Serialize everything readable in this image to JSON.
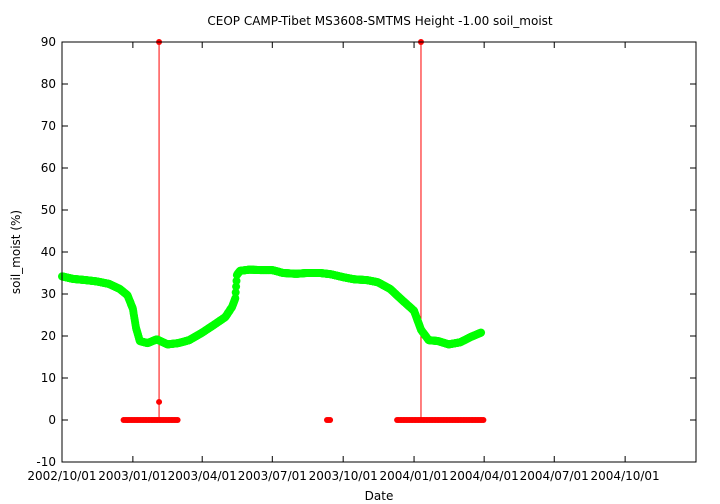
{
  "chart_data": {
    "type": "scatter",
    "title": "CEOP CAMP-Tibet MS3608-SMTMS Height -1.00 soil_moist",
    "xlabel": "Date",
    "ylabel": "soil_moist (%)",
    "xlim": [
      "2002-10-01",
      "2005-01-01"
    ],
    "ylim": [
      -10,
      90
    ],
    "x_ticks": [
      "2002/10/01",
      "2003/01/01",
      "2003/04/01",
      "2003/07/01",
      "2003/10/01",
      "2004/01/01",
      "2004/04/01",
      "2004/07/01",
      "2004/10/01"
    ],
    "y_ticks": [
      -10,
      0,
      10,
      20,
      30,
      40,
      50,
      60,
      70,
      80,
      90
    ],
    "grid": false,
    "legend": "none",
    "colors": {
      "soil_moist": "#00ff00",
      "flag": "#ff0000",
      "frame": "#000000"
    },
    "series": [
      {
        "color": "#00ff00",
        "points": [
          [
            "2002-10-01",
            34.2
          ],
          [
            "2002-10-15",
            33.6
          ],
          [
            "2002-11-01",
            33.3
          ],
          [
            "2002-11-15",
            33.0
          ],
          [
            "2002-12-01",
            32.4
          ],
          [
            "2002-12-15",
            31.2
          ],
          [
            "2002-12-25",
            29.7
          ],
          [
            "2003-01-01",
            26.5
          ],
          [
            "2003-01-05",
            22.0
          ],
          [
            "2003-01-10",
            18.8
          ],
          [
            "2003-01-20",
            18.3
          ],
          [
            "2003-02-01",
            19.2
          ],
          [
            "2003-02-15",
            18.0
          ],
          [
            "2003-03-01",
            18.3
          ],
          [
            "2003-03-15",
            19.0
          ],
          [
            "2003-04-01",
            20.8
          ],
          [
            "2003-04-15",
            22.5
          ],
          [
            "2003-05-01",
            24.5
          ],
          [
            "2003-05-10",
            27.0
          ],
          [
            "2003-05-14",
            29.0
          ],
          [
            "2003-05-16",
            34.5
          ],
          [
            "2003-05-20",
            35.5
          ],
          [
            "2003-06-01",
            35.8
          ],
          [
            "2003-06-15",
            35.7
          ],
          [
            "2003-07-01",
            35.7
          ],
          [
            "2003-07-15",
            35.0
          ],
          [
            "2003-08-01",
            34.8
          ],
          [
            "2003-08-15",
            35.0
          ],
          [
            "2003-09-01",
            35.0
          ],
          [
            "2003-09-15",
            34.7
          ],
          [
            "2003-10-01",
            34.0
          ],
          [
            "2003-10-15",
            33.5
          ],
          [
            "2003-11-01",
            33.3
          ],
          [
            "2003-11-15",
            32.8
          ],
          [
            "2003-12-01",
            31.2
          ],
          [
            "2003-12-15",
            28.8
          ],
          [
            "2004-01-01",
            26.0
          ],
          [
            "2004-01-10",
            21.5
          ],
          [
            "2004-01-20",
            19.0
          ],
          [
            "2004-02-01",
            18.8
          ],
          [
            "2004-02-15",
            18.0
          ],
          [
            "2004-03-01",
            18.5
          ],
          [
            "2004-03-15",
            19.8
          ],
          [
            "2004-03-28",
            20.8
          ]
        ]
      },
      {
        "color": "#ff0000",
        "flat_runs_at_zero": [
          [
            "2002-12-20",
            "2003-03-01"
          ],
          [
            "2003-09-10",
            "2003-09-15"
          ],
          [
            "2003-12-10",
            "2004-03-31"
          ]
        ],
        "points": [
          [
            "2003-02-04",
            90
          ],
          [
            "2003-02-04",
            4.3
          ],
          [
            "2004-01-10",
            90
          ]
        ]
      }
    ],
    "vertical_lines": [
      {
        "x": "2003-02-04",
        "from": 0,
        "to": 90,
        "color": "#ff0000"
      },
      {
        "x": "2004-01-10",
        "from": 0,
        "to": 90,
        "color": "#ff0000"
      }
    ]
  }
}
